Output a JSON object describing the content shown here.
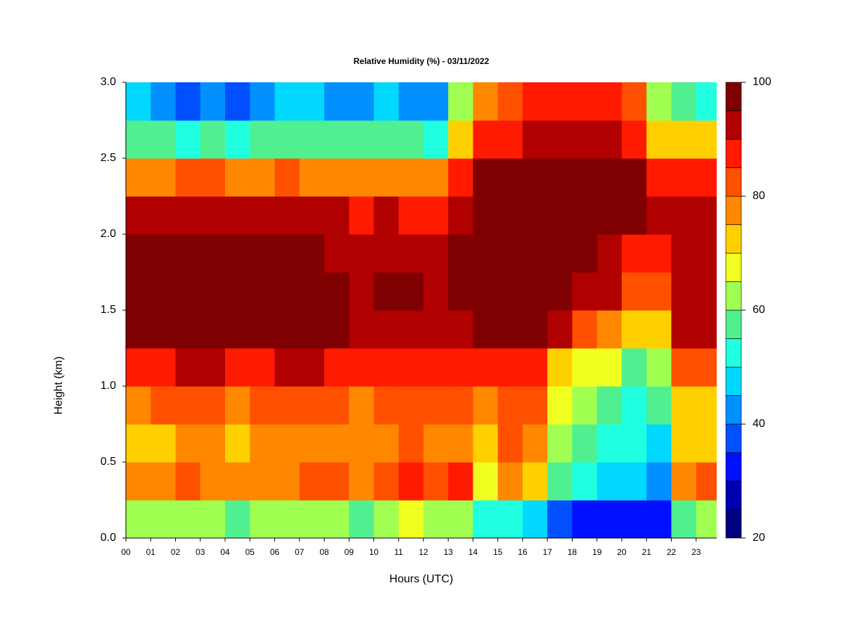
{
  "chart_data": {
    "type": "heatmap",
    "title": "Relative Humidity (%) - 03/11/2022",
    "x_label": "Hours (UTC)",
    "y_label": "Height (km)",
    "x": [
      0,
      1,
      2,
      3,
      4,
      5,
      6,
      7,
      8,
      9,
      10,
      11,
      12,
      13,
      14,
      15,
      16,
      17,
      18,
      19,
      20,
      21,
      22,
      23
    ],
    "y": [
      0,
      0.25,
      0.5,
      0.75,
      1,
      1.25,
      1.5,
      1.75,
      2,
      2.25,
      2.5,
      2.75
    ],
    "z": [
      [
        62,
        60,
        60,
        62,
        58,
        60,
        62,
        60,
        62,
        58,
        60,
        65,
        62,
        60,
        50,
        50,
        45,
        35,
        33,
        30,
        30,
        30,
        55,
        60
      ],
      [
        75,
        75,
        82,
        78,
        76,
        78,
        78,
        80,
        80,
        75,
        82,
        85,
        80,
        85,
        68,
        78,
        72,
        55,
        50,
        48,
        45,
        42,
        75,
        80
      ],
      [
        72,
        72,
        78,
        76,
        72,
        75,
        76,
        78,
        78,
        75,
        78,
        80,
        76,
        78,
        72,
        80,
        78,
        60,
        55,
        52,
        50,
        48,
        72,
        72
      ],
      [
        78,
        80,
        82,
        80,
        78,
        80,
        80,
        82,
        80,
        78,
        82,
        82,
        80,
        80,
        78,
        82,
        82,
        65,
        60,
        58,
        50,
        55,
        72,
        72
      ],
      [
        88,
        88,
        92,
        90,
        88,
        88,
        90,
        90,
        88,
        86,
        88,
        88,
        88,
        86,
        85,
        88,
        88,
        72,
        68,
        65,
        55,
        60,
        80,
        82
      ],
      [
        95,
        95,
        98,
        96,
        95,
        95,
        96,
        95,
        95,
        92,
        93,
        93,
        92,
        92,
        95,
        97,
        95,
        90,
        80,
        78,
        70,
        70,
        90,
        90
      ],
      [
        97,
        97,
        99,
        98,
        97,
        97,
        96,
        96,
        95,
        94,
        95,
        95,
        94,
        95,
        98,
        98,
        98,
        97,
        93,
        90,
        80,
        80,
        92,
        92
      ],
      [
        95,
        96,
        98,
        97,
        96,
        95,
        95,
        95,
        94,
        93,
        93,
        93,
        92,
        95,
        98,
        98,
        98,
        98,
        97,
        93,
        88,
        85,
        92,
        92
      ],
      [
        90,
        90,
        92,
        92,
        90,
        90,
        90,
        90,
        90,
        88,
        90,
        88,
        88,
        92,
        98,
        98,
        98,
        98,
        98,
        97,
        95,
        90,
        90,
        90
      ],
      [
        75,
        78,
        82,
        80,
        78,
        78,
        80,
        78,
        76,
        75,
        78,
        76,
        75,
        85,
        95,
        95,
        97,
        97,
        97,
        97,
        95,
        85,
        88,
        88
      ],
      [
        55,
        55,
        52,
        55,
        52,
        55,
        58,
        58,
        55,
        55,
        58,
        55,
        52,
        70,
        85,
        88,
        90,
        92,
        93,
        92,
        88,
        72,
        72,
        70
      ],
      [
        45,
        42,
        35,
        40,
        38,
        40,
        45,
        45,
        42,
        42,
        45,
        42,
        40,
        60,
        78,
        80,
        85,
        85,
        88,
        85,
        80,
        60,
        58,
        52
      ]
    ],
    "xlim": [
      0,
      23.83
    ],
    "ylim": [
      0,
      3
    ],
    "zlim": [
      20,
      100
    ],
    "xticks": [
      {
        "value": 0,
        "label": "00"
      },
      {
        "value": 1,
        "label": "01"
      },
      {
        "value": 2,
        "label": "02"
      },
      {
        "value": 3,
        "label": "03"
      },
      {
        "value": 4,
        "label": "04"
      },
      {
        "value": 5,
        "label": "05"
      },
      {
        "value": 6,
        "label": "06"
      },
      {
        "value": 7,
        "label": "07"
      },
      {
        "value": 8,
        "label": "08"
      },
      {
        "value": 9,
        "label": "09"
      },
      {
        "value": 10,
        "label": "10"
      },
      {
        "value": 11,
        "label": "11"
      },
      {
        "value": 12,
        "label": "12"
      },
      {
        "value": 13,
        "label": "13"
      },
      {
        "value": 14,
        "label": "14"
      },
      {
        "value": 15,
        "label": "15"
      },
      {
        "value": 16,
        "label": "16"
      },
      {
        "value": 17,
        "label": "17"
      },
      {
        "value": 18,
        "label": "18"
      },
      {
        "value": 19,
        "label": "19"
      },
      {
        "value": 20,
        "label": "20"
      },
      {
        "value": 21,
        "label": "21"
      },
      {
        "value": 22,
        "label": "22"
      },
      {
        "value": 23,
        "label": "23"
      }
    ],
    "yticks": [
      {
        "value": 0,
        "label": "0.0"
      },
      {
        "value": 0.5,
        "label": "0.5"
      },
      {
        "value": 1,
        "label": "1.0"
      },
      {
        "value": 1.5,
        "label": "1.5"
      },
      {
        "value": 2,
        "label": "2.0"
      },
      {
        "value": 2.5,
        "label": "2.5"
      },
      {
        "value": 3,
        "label": "3.0"
      }
    ],
    "colorbar_ticks": [
      20,
      40,
      60,
      80,
      100
    ],
    "colors": [
      "#000080",
      "#0000b0",
      "#0010ff",
      "#0050ff",
      "#0090ff",
      "#00d8ff",
      "#20ffe0",
      "#50f090",
      "#a0ff50",
      "#f0ff20",
      "#ffd000",
      "#ff8800",
      "#ff5000",
      "#ff1a00",
      "#b00000",
      "#7f0000"
    ]
  }
}
